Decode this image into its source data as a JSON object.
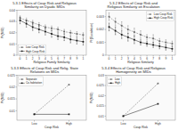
{
  "chart_data": [
    {
      "type": "line",
      "title": "5.3.1 Effects of Coup Risk and Religious\nSimilarity on Dyadic MIDs",
      "x_label": "Religious Family Similarity",
      "y_label": "Pr(MID)",
      "categories": [
        "0",
        "1",
        "2",
        "3",
        "4",
        "5",
        "6",
        "7",
        "8",
        "9",
        "1"
      ],
      "series": [
        {
          "name": "Low Coup Risk",
          "color": "#666666",
          "line_style": "dashed",
          "marker": "square",
          "values": [
            0.033,
            0.031,
            0.029,
            0.027,
            0.025,
            0.024,
            0.023,
            0.021,
            0.02,
            0.019,
            0.018
          ],
          "lower": [
            0.031,
            0.029,
            0.027,
            0.025,
            0.023,
            0.022,
            0.021,
            0.019,
            0.018,
            0.017,
            0.016
          ],
          "upper": [
            0.035,
            0.033,
            0.031,
            0.029,
            0.027,
            0.026,
            0.025,
            0.023,
            0.022,
            0.021,
            0.02
          ]
        },
        {
          "name": "High Coup Risk",
          "color": "#111111",
          "line_style": "solid",
          "marker": "square",
          "values": [
            0.031,
            0.028,
            0.025,
            0.023,
            0.021,
            0.019,
            0.017,
            0.016,
            0.014,
            0.013,
            0.012
          ],
          "lower": [
            0.028,
            0.025,
            0.022,
            0.02,
            0.018,
            0.016,
            0.014,
            0.013,
            0.011,
            0.01,
            0.009
          ],
          "upper": [
            0.034,
            0.031,
            0.028,
            0.026,
            0.024,
            0.022,
            0.02,
            0.019,
            0.017,
            0.016,
            0.015
          ]
        }
      ],
      "ylim": [
        0,
        0.04
      ],
      "yticks": [
        0,
        0.01,
        0.02,
        0.03,
        0.04
      ],
      "legend": "lower left",
      "grid": false
    },
    {
      "type": "line",
      "title": "5.3.2 Effects of Coup Risk and\nReligious Similarity on Escalation",
      "x_label": "Religious Similarity",
      "y_label": "Pr(Escalation)",
      "categories": [
        "0",
        "1",
        "2",
        "3",
        "4",
        "5",
        "6",
        "7",
        "8",
        "9",
        "1"
      ],
      "series": [
        {
          "name": "Low Coup Risk",
          "color": "#666666",
          "line_style": "dashed",
          "marker": "square",
          "values": [
            0.003,
            0.0026,
            0.0023,
            0.002,
            0.0018,
            0.0016,
            0.0014,
            0.0013,
            0.0011,
            0.001,
            0.0009
          ],
          "lower": [
            0.0027,
            0.0023,
            0.002,
            0.0017,
            0.0015,
            0.0013,
            0.0012,
            0.001,
            0.0009,
            0.0008,
            0.0007
          ],
          "upper": [
            0.0033,
            0.0029,
            0.0026,
            0.0023,
            0.0021,
            0.0019,
            0.0016,
            0.0016,
            0.0013,
            0.0012,
            0.0011
          ]
        },
        {
          "name": "High Coup Risk",
          "color": "#111111",
          "line_style": "solid",
          "marker": "square",
          "values": [
            0.0022,
            0.0019,
            0.0016,
            0.0014,
            0.0012,
            0.001,
            0.0009,
            0.0008,
            0.0007,
            0.0006,
            0.0005
          ],
          "lower": [
            0.0019,
            0.0016,
            0.0013,
            0.0011,
            0.0009,
            0.0008,
            0.0007,
            0.0006,
            0.0005,
            0.0004,
            0.0003
          ],
          "upper": [
            0.0025,
            0.0022,
            0.0019,
            0.0017,
            0.0015,
            0.0012,
            0.0011,
            0.001,
            0.0009,
            0.0008,
            0.0007
          ]
        }
      ],
      "ylim": [
        0,
        0.0035
      ],
      "yticks": [
        0,
        0.001,
        0.002,
        0.003
      ],
      "legend": "upper right",
      "grid": false
    },
    {
      "type": "line",
      "title": "5.3.3 Effects of Coup Risk and Relig. State\nRelations on MIDs",
      "x_label": "Coup Risk",
      "y_label": "Pr(MID)",
      "categories": [
        "Low",
        "High"
      ],
      "series": [
        {
          "name": "Separate",
          "color": "#666666",
          "line_style": "dashed",
          "marker": "square",
          "values": [
            0.0085,
            0.021
          ]
        },
        {
          "name": "Co-habitation",
          "color": "#111111",
          "line_style": "solid",
          "marker": "square",
          "values": [
            0.0085,
            0.0085
          ]
        }
      ],
      "ylim": [
        0.006,
        0.025
      ],
      "yticks": [
        0.01,
        0.015,
        0.02,
        0.025
      ],
      "legend": "upper left",
      "grid": false
    },
    {
      "type": "line",
      "title": "5.3.4 Effects of Coup Risk and Religious\nHomogeneity on MIDs",
      "x_label": "Coup Risk",
      "y_label": "Pr(MID)",
      "categories": [
        "Low",
        "High"
      ],
      "series": [
        {
          "name": "Low",
          "color": "#666666",
          "line_style": "dashed",
          "marker": "square",
          "values": [
            0.01,
            0.026
          ]
        },
        {
          "name": "High",
          "color": "#111111",
          "line_style": "solid",
          "marker": "square",
          "values": [
            0.01,
            0.016
          ]
        }
      ],
      "ylim": [
        0.008,
        0.03
      ],
      "yticks": [
        0.01,
        0.015,
        0.02,
        0.025,
        0.03
      ],
      "legend": "upper left",
      "grid": false
    }
  ]
}
